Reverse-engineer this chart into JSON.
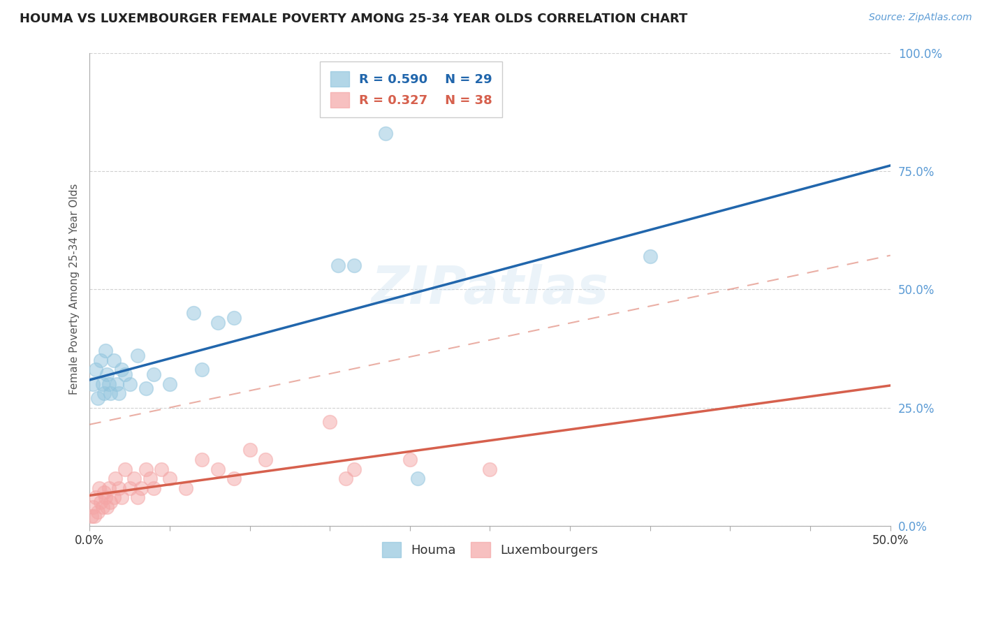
{
  "title": "HOUMA VS LUXEMBOURGER FEMALE POVERTY AMONG 25-34 YEAR OLDS CORRELATION CHART",
  "source": "Source: ZipAtlas.com",
  "ylabel": "Female Poverty Among 25-34 Year Olds",
  "houma_R": 0.59,
  "houma_N": 29,
  "luxembourger_R": 0.327,
  "luxembourger_N": 38,
  "houma_color": "#92c5de",
  "luxembourger_color": "#f4a6a6",
  "houma_line_color": "#2166ac",
  "luxembourger_line_color": "#d6604d",
  "houma_scatter": [
    [
      0.002,
      0.3
    ],
    [
      0.004,
      0.33
    ],
    [
      0.005,
      0.27
    ],
    [
      0.007,
      0.35
    ],
    [
      0.008,
      0.3
    ],
    [
      0.009,
      0.28
    ],
    [
      0.01,
      0.37
    ],
    [
      0.011,
      0.32
    ],
    [
      0.012,
      0.3
    ],
    [
      0.013,
      0.28
    ],
    [
      0.015,
      0.35
    ],
    [
      0.017,
      0.3
    ],
    [
      0.018,
      0.28
    ],
    [
      0.02,
      0.33
    ],
    [
      0.022,
      0.32
    ],
    [
      0.025,
      0.3
    ],
    [
      0.03,
      0.36
    ],
    [
      0.035,
      0.29
    ],
    [
      0.04,
      0.32
    ],
    [
      0.05,
      0.3
    ],
    [
      0.065,
      0.45
    ],
    [
      0.07,
      0.33
    ],
    [
      0.08,
      0.43
    ],
    [
      0.09,
      0.44
    ],
    [
      0.155,
      0.55
    ],
    [
      0.165,
      0.55
    ],
    [
      0.185,
      0.83
    ],
    [
      0.205,
      0.1
    ],
    [
      0.35,
      0.57
    ]
  ],
  "luxembourger_scatter": [
    [
      0.001,
      0.02
    ],
    [
      0.002,
      0.04
    ],
    [
      0.003,
      0.02
    ],
    [
      0.004,
      0.06
    ],
    [
      0.005,
      0.03
    ],
    [
      0.006,
      0.08
    ],
    [
      0.007,
      0.05
    ],
    [
      0.008,
      0.04
    ],
    [
      0.009,
      0.07
    ],
    [
      0.01,
      0.06
    ],
    [
      0.011,
      0.04
    ],
    [
      0.012,
      0.08
    ],
    [
      0.013,
      0.05
    ],
    [
      0.015,
      0.06
    ],
    [
      0.016,
      0.1
    ],
    [
      0.018,
      0.08
    ],
    [
      0.02,
      0.06
    ],
    [
      0.022,
      0.12
    ],
    [
      0.025,
      0.08
    ],
    [
      0.028,
      0.1
    ],
    [
      0.03,
      0.06
    ],
    [
      0.032,
      0.08
    ],
    [
      0.035,
      0.12
    ],
    [
      0.038,
      0.1
    ],
    [
      0.04,
      0.08
    ],
    [
      0.045,
      0.12
    ],
    [
      0.05,
      0.1
    ],
    [
      0.06,
      0.08
    ],
    [
      0.07,
      0.14
    ],
    [
      0.08,
      0.12
    ],
    [
      0.09,
      0.1
    ],
    [
      0.1,
      0.16
    ],
    [
      0.11,
      0.14
    ],
    [
      0.15,
      0.22
    ],
    [
      0.16,
      0.1
    ],
    [
      0.165,
      0.12
    ],
    [
      0.2,
      0.14
    ],
    [
      0.25,
      0.12
    ]
  ],
  "xlim": [
    0.0,
    0.5
  ],
  "ylim": [
    0.0,
    1.0
  ],
  "yticks": [
    0.0,
    0.25,
    0.5,
    0.75,
    1.0
  ],
  "ytick_labels": [
    "0.0%",
    "25.0%",
    "50.0%",
    "75.0%",
    "100.0%"
  ],
  "watermark": "ZIPatlas",
  "background_color": "#ffffff",
  "grid_color": "#d0d0d0"
}
